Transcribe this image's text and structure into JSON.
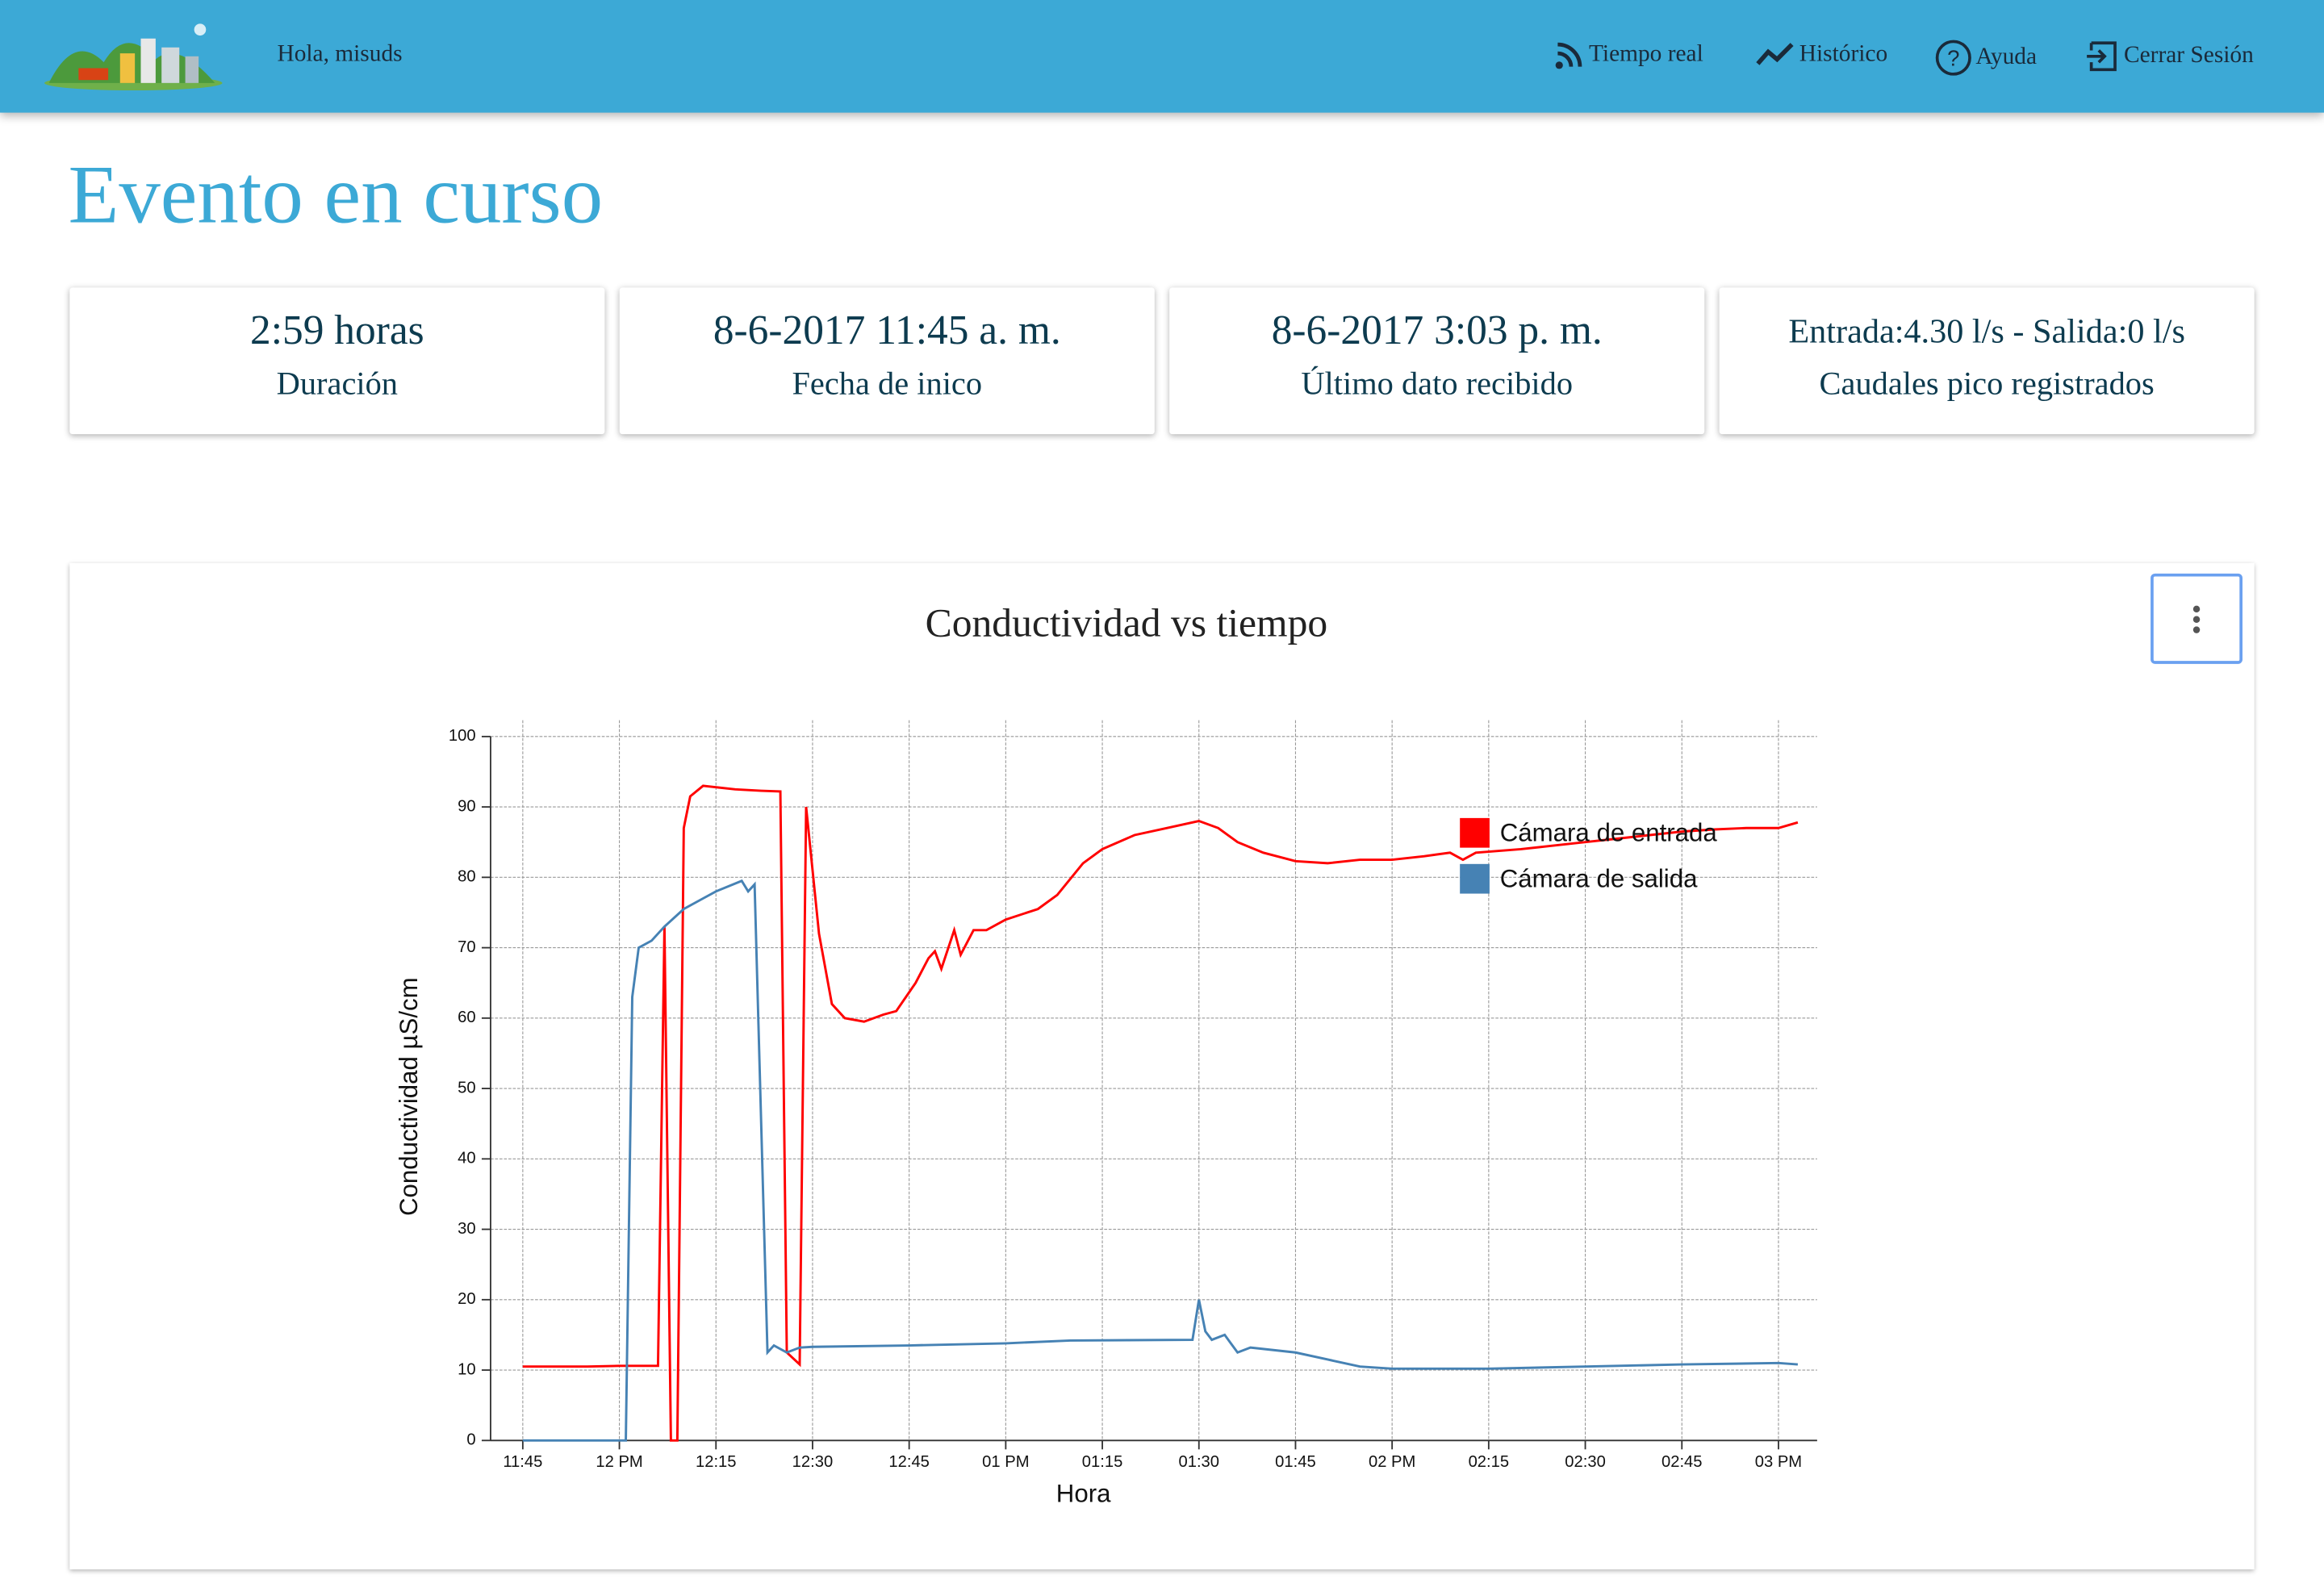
{
  "header": {
    "greeting": "Hola, misuds",
    "nav": [
      "Tiempo real",
      "Histórico",
      "Ayuda",
      "Cerrar Sesión"
    ]
  },
  "page_title": "Evento en curso",
  "cards": [
    {
      "value": "2:59 horas",
      "label": "Duración"
    },
    {
      "value": "8-6-2017 11:45 a. m.",
      "label": "Fecha de inico"
    },
    {
      "value": "8-6-2017 3:03 p. m.",
      "label": "Último dato recibido"
    },
    {
      "value": "Entrada:4.30 l/s - Salida:0 l/s",
      "label": "Caudales pico registrados"
    }
  ],
  "chart_data": {
    "type": "line",
    "title": "Conductividad vs tiempo",
    "x_label": "Hora",
    "y_label": "Conductividad µS/cm",
    "xlim": [
      "11:40",
      "15:06"
    ],
    "ylim": [
      0,
      100
    ],
    "xticks": [
      "11:45",
      {
        "value": "12:00",
        "label": "12 PM"
      },
      "12:15",
      "12:30",
      "12:45",
      {
        "value": "13:00",
        "label": "01 PM"
      },
      {
        "value": "13:15",
        "label": "01:15"
      },
      {
        "value": "13:30",
        "label": "01:30"
      },
      {
        "value": "13:45",
        "label": "01:45"
      },
      {
        "value": "14:00",
        "label": "02 PM"
      },
      {
        "value": "14:15",
        "label": "02:15"
      },
      {
        "value": "14:30",
        "label": "02:30"
      },
      {
        "value": "14:45",
        "label": "02:45"
      },
      {
        "value": "15:00",
        "label": "03 PM"
      }
    ],
    "yticks": [
      0,
      10,
      20,
      30,
      40,
      50,
      60,
      70,
      80,
      90,
      100
    ],
    "grid": true,
    "legend": "upper right",
    "series": [
      {
        "name": "Cámara de entrada",
        "color": "#ff0000",
        "x": [
          "11:45",
          "11:55",
          "12:00",
          "12:06",
          "12:07",
          "12:08",
          "12:09",
          "12:10",
          "12:11",
          "12:13",
          "12:15",
          "12:18",
          "12:22",
          "12:25",
          "12:26",
          "12:28",
          "12:29",
          "12:31",
          "12:33",
          "12:35",
          "12:38",
          "12:41",
          "12:43",
          "12:46",
          "12:48",
          "12:49",
          "12:50",
          "12:52",
          "12:53",
          "12:55",
          "12:57",
          "13:00",
          "13:05",
          "13:08",
          "13:12",
          "13:15",
          "13:20",
          "13:25",
          "13:30",
          "13:33",
          "13:36",
          "13:40",
          "13:45",
          "13:50",
          "13:55",
          "14:00",
          "14:05",
          "14:09",
          "14:11",
          "14:13",
          "14:20",
          "14:25",
          "14:30",
          "14:35",
          "14:40",
          "14:45",
          "14:50",
          "14:55",
          "15:00",
          "15:03"
        ],
        "values": [
          10.5,
          10.5,
          10.6,
          10.6,
          73,
          0,
          0,
          87,
          91.5,
          93,
          92.8,
          92.5,
          92.3,
          92.2,
          12.5,
          10.8,
          90,
          72,
          62,
          60,
          59.5,
          60.5,
          61,
          65,
          68.5,
          69.5,
          67,
          72.5,
          69,
          72.5,
          72.5,
          74,
          75.5,
          77.5,
          82,
          84,
          86,
          87,
          88,
          87,
          85,
          83.5,
          82.3,
          82,
          82.5,
          82.5,
          83,
          83.5,
          82.5,
          83.5,
          84,
          84.5,
          85,
          85.5,
          86,
          86.5,
          86.8,
          87,
          87,
          87.8
        ]
      },
      {
        "name": "Cámara de salida",
        "color": "#4682b4",
        "x": [
          "11:45",
          "12:01",
          "12:02",
          "12:03",
          "12:05",
          "12:07",
          "12:10",
          "12:13",
          "12:15",
          "12:19",
          "12:20",
          "12:21",
          "12:23",
          "12:24",
          "12:26",
          "12:28",
          "12:30",
          "12:45",
          "13:00",
          "13:10",
          "13:29",
          "13:30",
          "13:31",
          "13:32",
          "13:34",
          "13:36",
          "13:38",
          "13:45",
          "13:50",
          "13:55",
          "14:00",
          "14:15",
          "14:30",
          "14:45",
          "15:00",
          "15:03"
        ],
        "values": [
          0,
          0,
          63,
          70,
          71,
          73,
          75.5,
          77,
          78,
          79.5,
          78,
          79,
          12.5,
          13.5,
          12.5,
          13.2,
          13.3,
          13.5,
          13.8,
          14.2,
          14.3,
          20,
          15.5,
          14.3,
          15,
          12.5,
          13.2,
          12.5,
          11.5,
          10.5,
          10.2,
          10.2,
          10.5,
          10.8,
          11,
          10.8
        ]
      }
    ]
  }
}
